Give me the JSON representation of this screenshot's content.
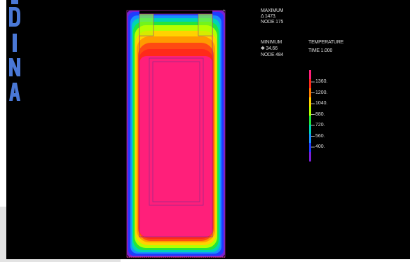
{
  "logo": {
    "text": "ADINA",
    "letters": [
      "D",
      "I",
      "N",
      "A"
    ],
    "color": "#4a78d6"
  },
  "info": {
    "maximum": {
      "title": "MAXIMUM",
      "value": "Δ 1473.",
      "node": "NODE 175"
    },
    "minimum": {
      "title": "MINIMUM",
      "value": "✱ 34.66",
      "node": "NODE 484"
    }
  },
  "legend": {
    "title": "TEMPERATURE",
    "time": "TIME 1.000",
    "ticks": [
      "1360.",
      "1200.",
      "1040.",
      "880.",
      "720.",
      "560.",
      "400."
    ],
    "colors": [
      "#ff1f7a",
      "#ff2a1a",
      "#ff7a00",
      "#ffd200",
      "#b4ff00",
      "#22e63c",
      "#00d4b4",
      "#1890ff",
      "#1f3cff",
      "#7a1fd6"
    ]
  },
  "colors": {
    "background": "#000000",
    "hot": "#ff1f7a",
    "frame": "#d23c8c",
    "cold": "#2346ff"
  }
}
